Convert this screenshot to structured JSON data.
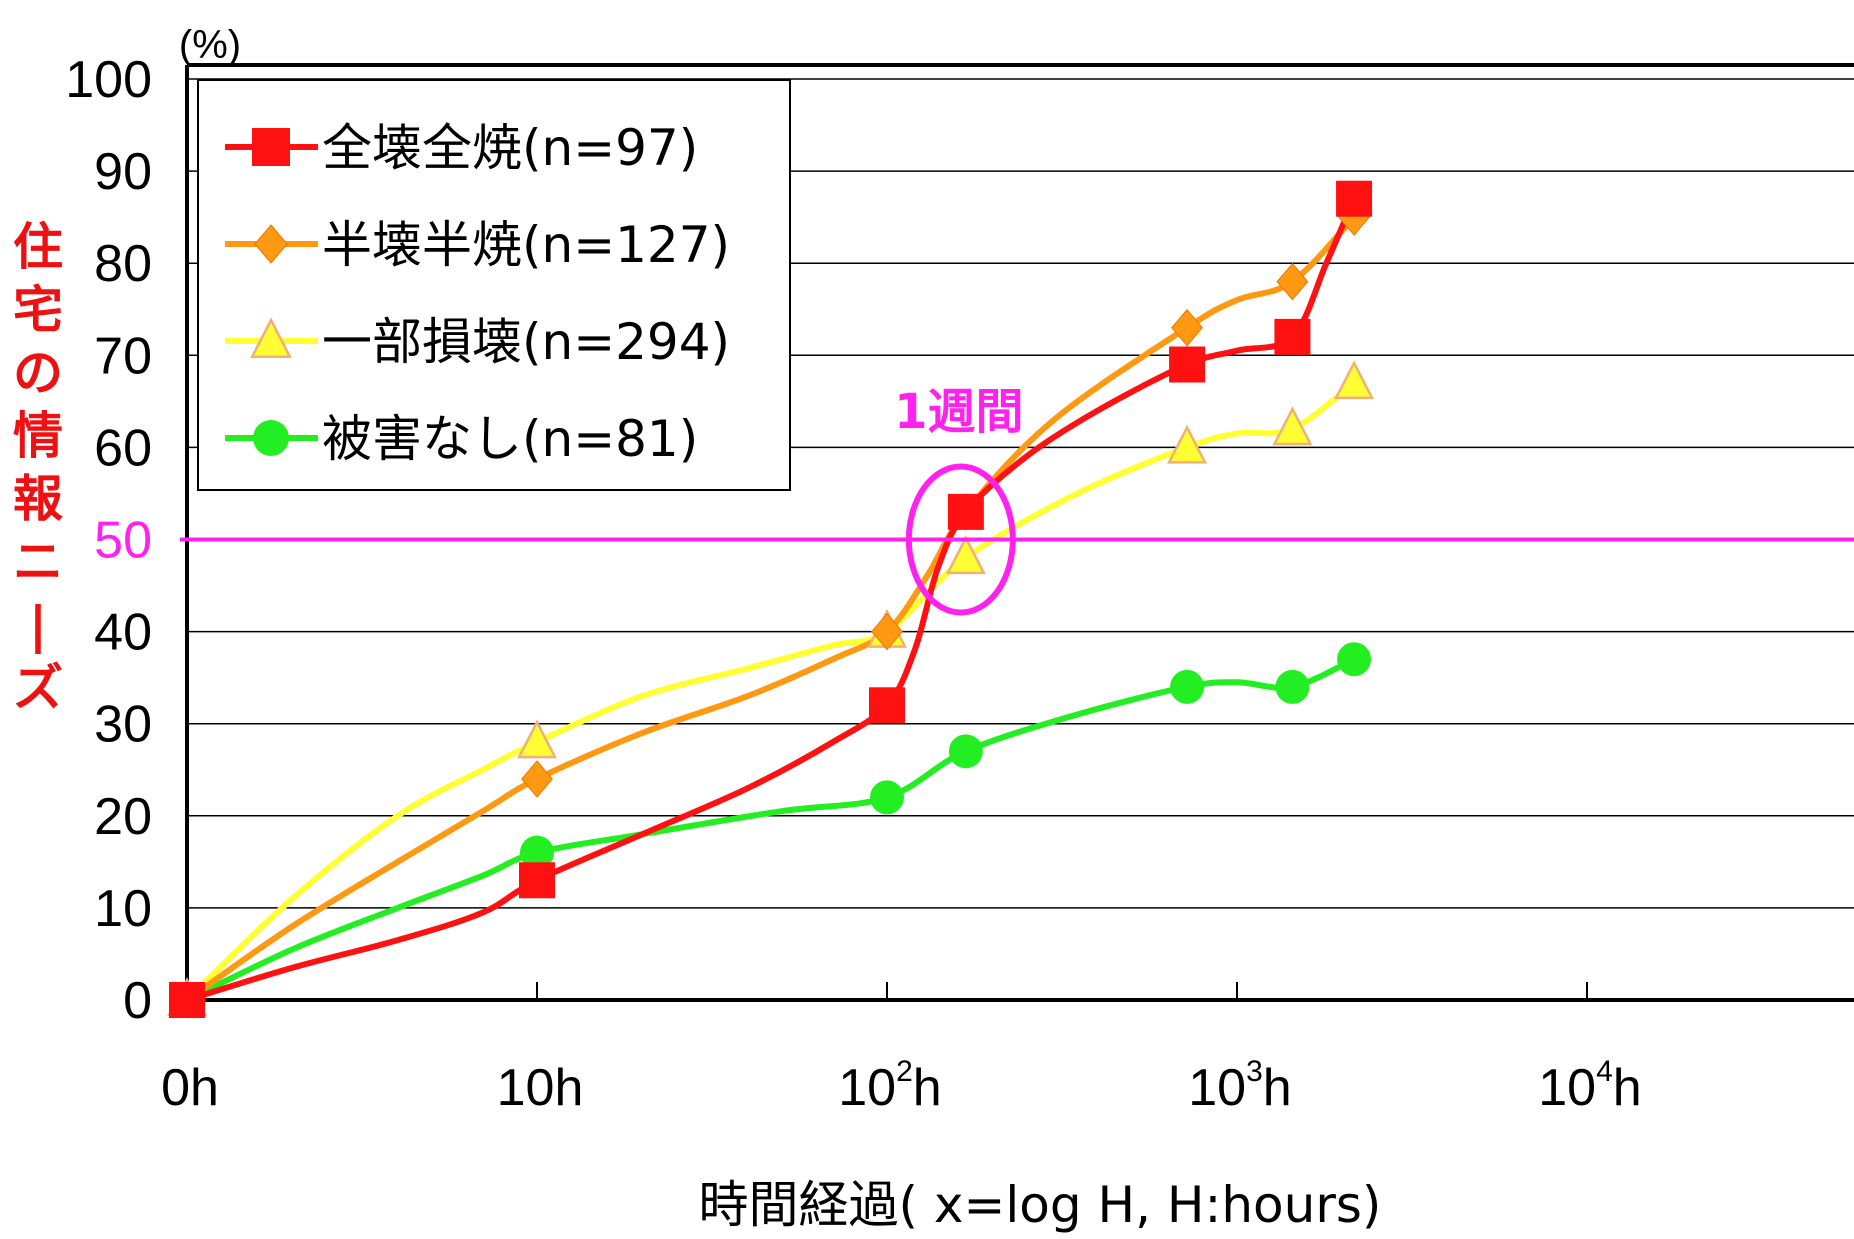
{
  "chart_data": {
    "type": "line",
    "x_scale": "log",
    "xlim": [
      1,
      100000
    ],
    "ylim": [
      0,
      100
    ],
    "y_ticks": [
      0,
      10,
      20,
      30,
      40,
      50,
      60,
      70,
      80,
      90,
      100
    ],
    "x_ticks": [
      {
        "value": 1,
        "base": "0h",
        "sup": "",
        "suffix": ""
      },
      {
        "value": 10,
        "base": "10h",
        "sup": "",
        "suffix": ""
      },
      {
        "value": 100,
        "base": "10",
        "sup": "2",
        "suffix": "h"
      },
      {
        "value": 1000,
        "base": "10",
        "sup": "3",
        "suffix": "h"
      },
      {
        "value": 10000,
        "base": "10",
        "sup": "4",
        "suffix": "h"
      }
    ],
    "unit_label": "(%)",
    "ylabel": "住宅の情報ニーズ",
    "xlabel": "時間経過( x=log H, H:hours)",
    "grid": true,
    "legend_position": "top-left",
    "reference_line": {
      "y": 50,
      "color": "#ff22ee"
    },
    "annotation": {
      "text": "1週間",
      "x": 168,
      "y": 50,
      "color": "#ff22ee"
    },
    "series": [
      {
        "name": "全壊全焼(n=97)",
        "color": "#ff1111",
        "marker": "square",
        "points": [
          {
            "x": 1,
            "y": 0
          },
          {
            "x": 10,
            "y": 13
          },
          {
            "x": 100,
            "y": 32
          },
          {
            "x": 168,
            "y": 53
          },
          {
            "x": 720,
            "y": 69
          },
          {
            "x": 1440,
            "y": 72
          },
          {
            "x": 2160,
            "y": 87
          }
        ],
        "curve": [
          [
            1,
            0
          ],
          [
            2,
            3.5
          ],
          [
            4,
            6.5
          ],
          [
            7,
            9.5
          ],
          [
            10,
            13
          ],
          [
            20,
            18
          ],
          [
            40,
            23
          ],
          [
            70,
            28
          ],
          [
            100,
            32
          ],
          [
            120,
            38
          ],
          [
            140,
            47
          ],
          [
            168,
            53
          ],
          [
            250,
            59
          ],
          [
            400,
            64
          ],
          [
            720,
            69
          ],
          [
            1000,
            70.5
          ],
          [
            1440,
            72
          ],
          [
            1800,
            80
          ],
          [
            2160,
            87
          ]
        ]
      },
      {
        "name": "半壊半焼(n=127)",
        "color": "#ff9911",
        "marker": "diamond",
        "points": [
          {
            "x": 1,
            "y": 0
          },
          {
            "x": 10,
            "y": 24
          },
          {
            "x": 100,
            "y": 40
          },
          {
            "x": 168,
            "y": 53
          },
          {
            "x": 720,
            "y": 73
          },
          {
            "x": 1440,
            "y": 78
          },
          {
            "x": 2160,
            "y": 85
          }
        ],
        "curve": [
          [
            1,
            0
          ],
          [
            2,
            8
          ],
          [
            4,
            15
          ],
          [
            7,
            20.5
          ],
          [
            10,
            24
          ],
          [
            20,
            29
          ],
          [
            40,
            33
          ],
          [
            70,
            37
          ],
          [
            100,
            40
          ],
          [
            130,
            46
          ],
          [
            168,
            53
          ],
          [
            300,
            63
          ],
          [
            720,
            73
          ],
          [
            1000,
            76
          ],
          [
            1440,
            78
          ],
          [
            2160,
            85
          ]
        ]
      },
      {
        "name": "一部損壊(n=294)",
        "color": "#ffff33",
        "marker": "triangle",
        "points": [
          {
            "x": 1,
            "y": 0
          },
          {
            "x": 10,
            "y": 28
          },
          {
            "x": 100,
            "y": 40
          },
          {
            "x": 168,
            "y": 48
          },
          {
            "x": 720,
            "y": 60
          },
          {
            "x": 1440,
            "y": 62
          },
          {
            "x": 2160,
            "y": 67
          }
        ],
        "curve": [
          [
            1,
            0
          ],
          [
            2,
            11
          ],
          [
            4,
            20
          ],
          [
            7,
            25
          ],
          [
            10,
            28
          ],
          [
            20,
            33
          ],
          [
            40,
            36
          ],
          [
            70,
            38.5
          ],
          [
            100,
            40
          ],
          [
            168,
            48
          ],
          [
            350,
            55
          ],
          [
            720,
            60
          ],
          [
            1000,
            61.5
          ],
          [
            1440,
            62
          ],
          [
            2160,
            67
          ]
        ]
      },
      {
        "name": "被害なし(n=81)",
        "color": "#22ee22",
        "marker": "circle",
        "points": [
          {
            "x": 1,
            "y": 0
          },
          {
            "x": 10,
            "y": 16
          },
          {
            "x": 100,
            "y": 22
          },
          {
            "x": 168,
            "y": 27
          },
          {
            "x": 720,
            "y": 34
          },
          {
            "x": 1440,
            "y": 34
          },
          {
            "x": 2160,
            "y": 37
          }
        ],
        "curve": [
          [
            1,
            0
          ],
          [
            2,
            5.5
          ],
          [
            4,
            10
          ],
          [
            7,
            13.5
          ],
          [
            10,
            16
          ],
          [
            20,
            18
          ],
          [
            50,
            20.5
          ],
          [
            100,
            22
          ],
          [
            168,
            27
          ],
          [
            350,
            31
          ],
          [
            720,
            34
          ],
          [
            1000,
            34.5
          ],
          [
            1440,
            34
          ],
          [
            2160,
            37
          ]
        ]
      }
    ]
  }
}
